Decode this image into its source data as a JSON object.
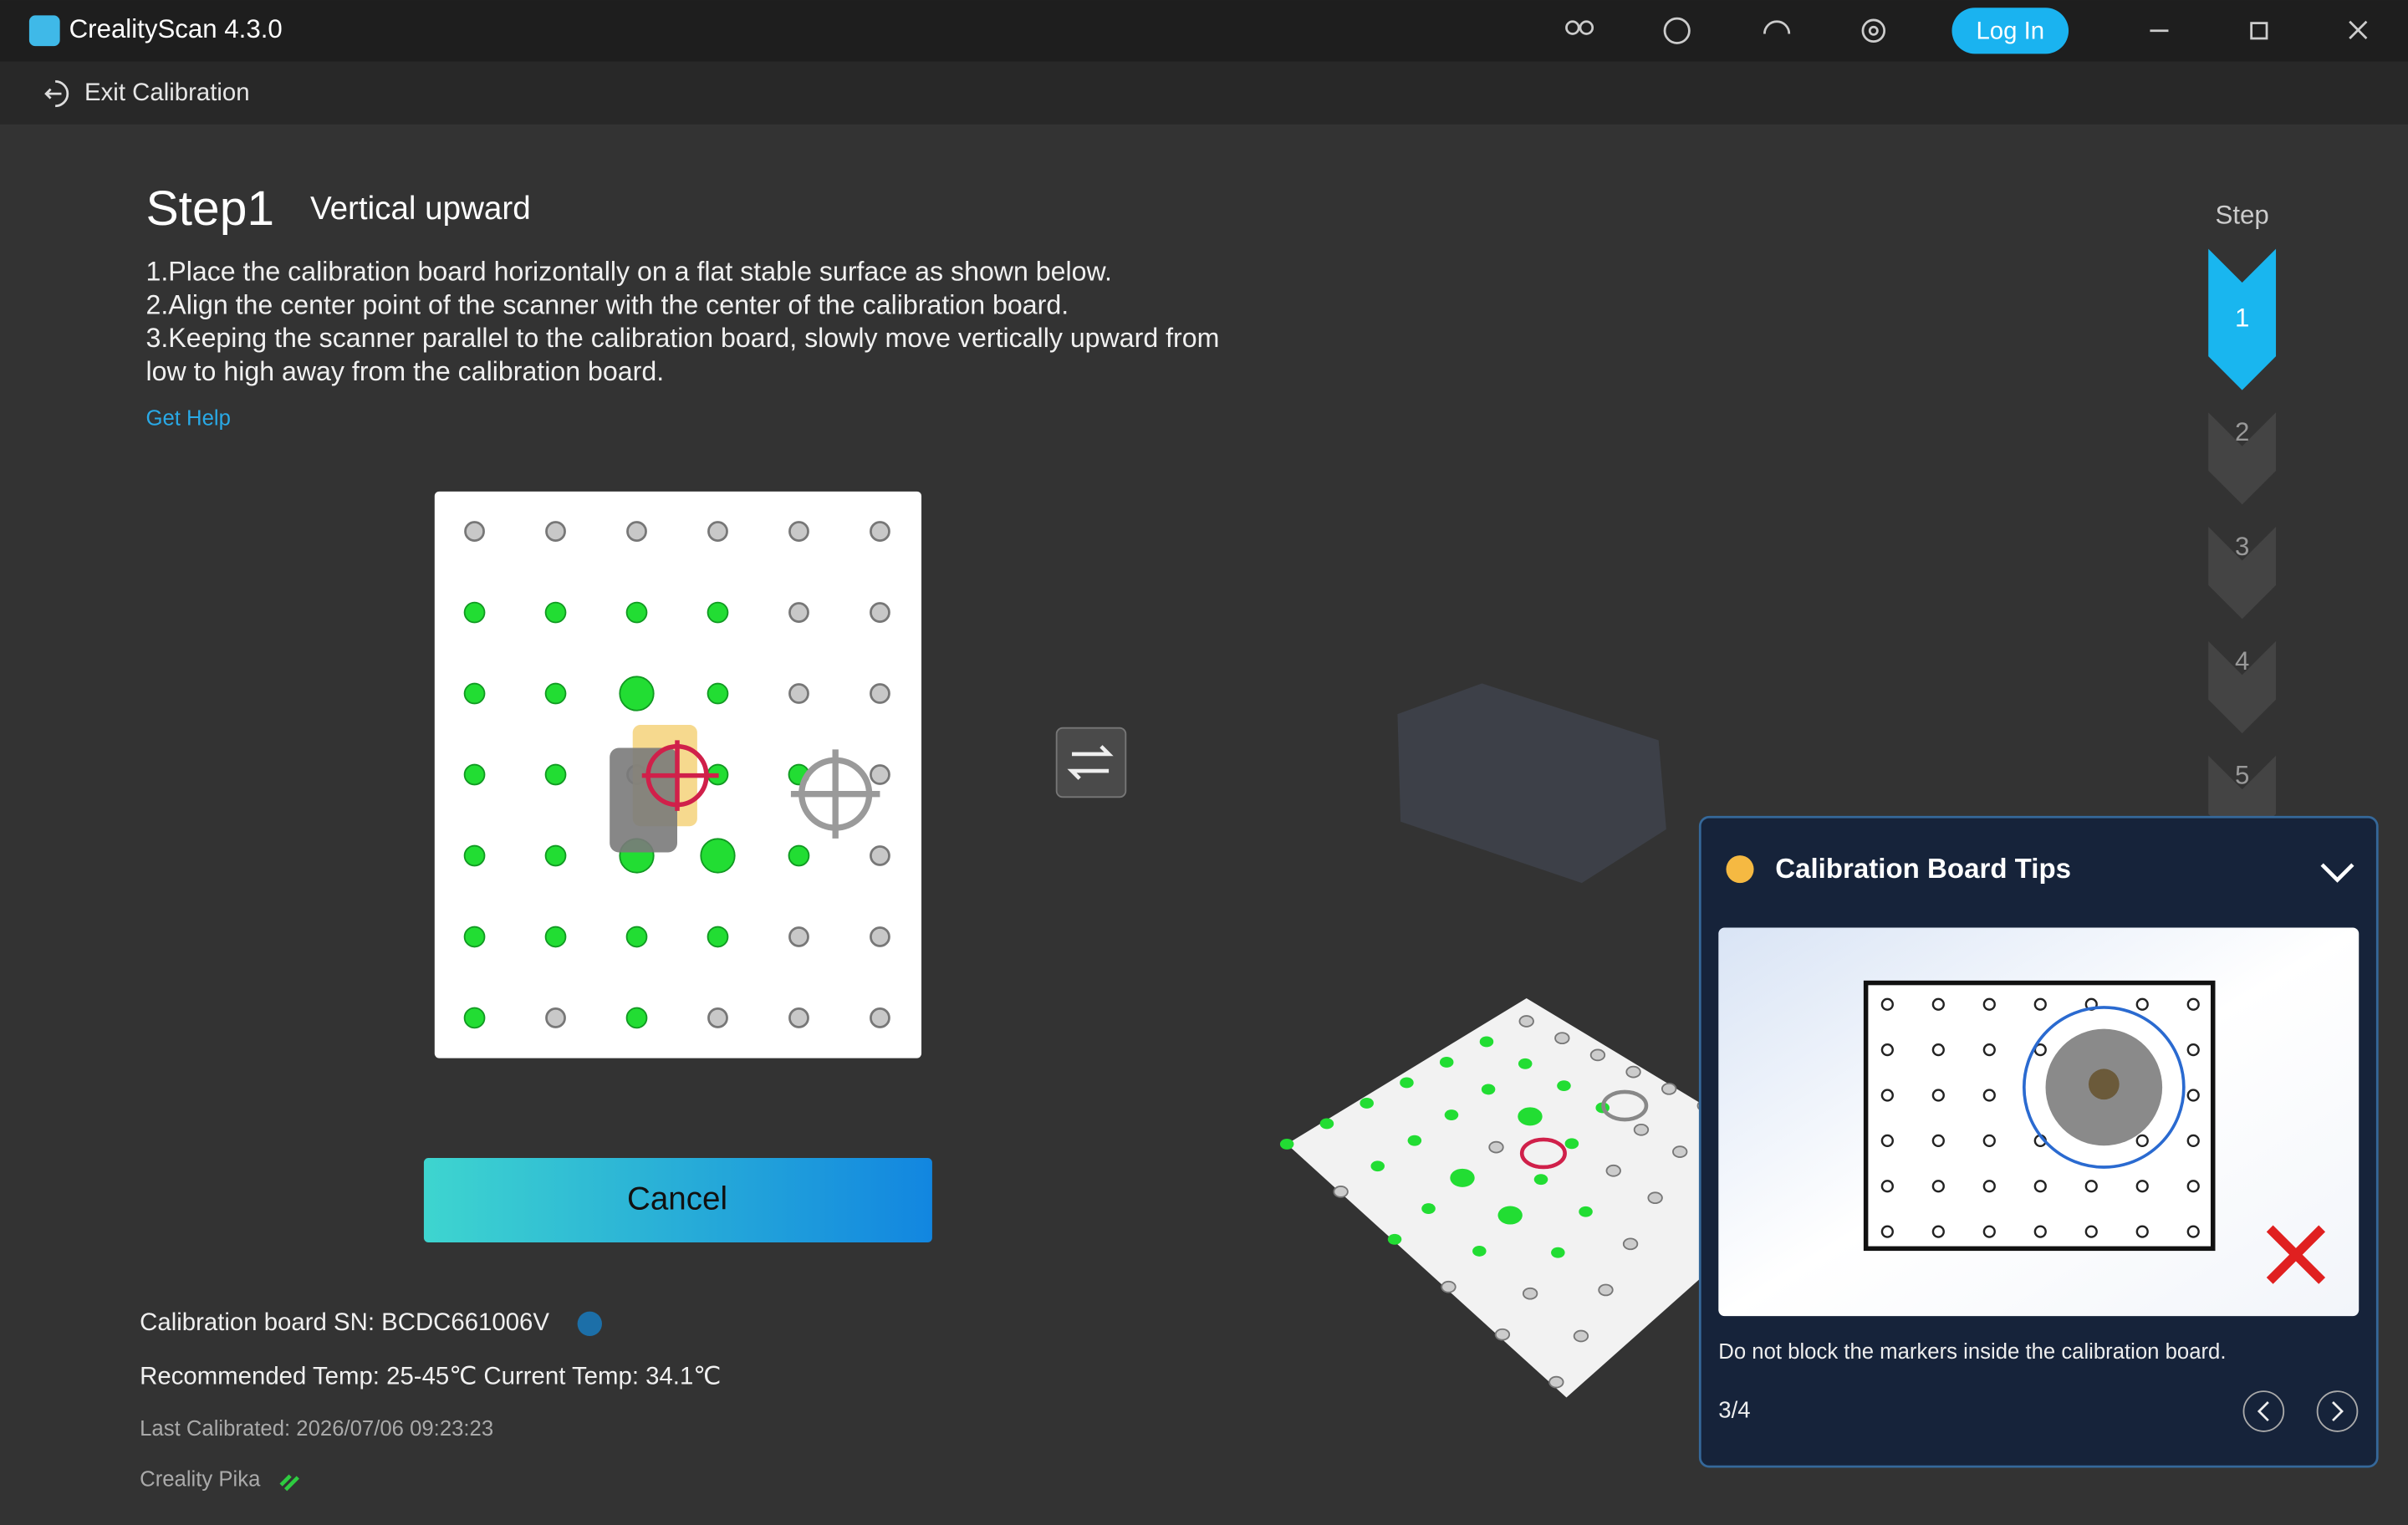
{
  "app": {
    "title": "CrealityScan 4.3.0",
    "login": "Log In"
  },
  "nav": {
    "exit": "Exit Calibration"
  },
  "step": {
    "number": "Step1",
    "name": "Vertical upward",
    "instructions": [
      "1.Place the calibration board horizontally on a flat stable surface as shown below.",
      "2.Align the center point of the scanner with the center of the calibration board.",
      "3.Keeping the scanner parallel to the calibration board, slowly move vertically upward from",
      "low to high away from the calibration board."
    ],
    "help": "Get Help"
  },
  "button": {
    "cancel": "Cancel"
  },
  "info": {
    "sn": "Calibration board SN: BCDC661006V",
    "temp": "Recommended Temp: 25-45℃ Current Temp: 34.1℃",
    "last": "Last Calibrated: 2026/07/06 09:23:23",
    "device": "Creality Pika"
  },
  "stepper": {
    "label": "Step",
    "steps": [
      "1",
      "2",
      "3",
      "4",
      "5"
    ]
  },
  "tips": {
    "title": "Calibration Board Tips",
    "text": "Do not block the markers inside the calibration board.",
    "page": "3/4"
  }
}
